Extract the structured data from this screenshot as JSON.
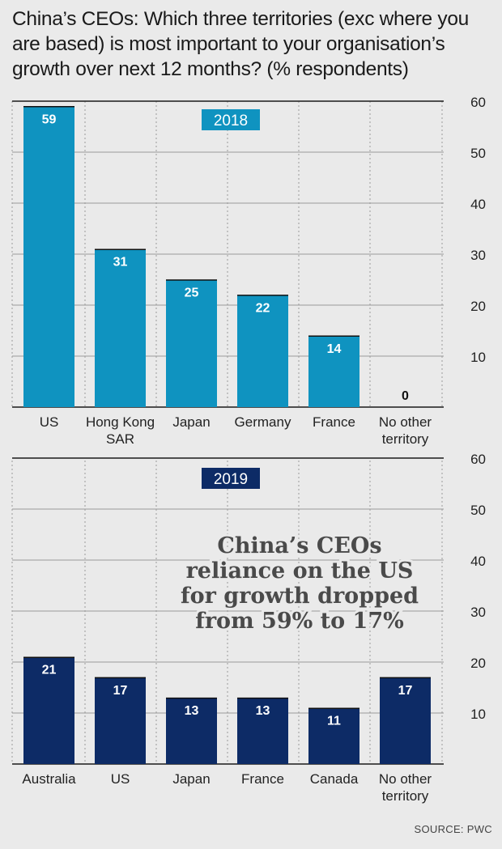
{
  "title": "China’s CEOs: Which three territories (exc where you are based) is most important to your organisation’s growth over next 12 months? (% respondents)",
  "source": "SOURCE: PWC",
  "colors": {
    "bar_2018": "#0f93c0",
    "bar_2019": "#0d2b66",
    "grid_dark": "#1a1a1a",
    "grid_light": "#9a9a9a",
    "background": "#eaeaea"
  },
  "chart_data": [
    {
      "type": "bar",
      "title": "2018",
      "categories": [
        [
          "US"
        ],
        [
          "Hong Kong",
          "SAR"
        ],
        [
          "Japan"
        ],
        [
          "Germany"
        ],
        [
          "France"
        ],
        [
          "No other",
          "territory"
        ]
      ],
      "values": [
        59,
        31,
        25,
        22,
        14,
        0
      ],
      "data_labels": [
        "59",
        "31",
        "25",
        "22",
        "14",
        "0"
      ],
      "yticks": [
        10,
        20,
        30,
        40,
        50,
        60
      ],
      "ylim": [
        0,
        60
      ],
      "ylabel": "",
      "xlabel": "",
      "y_axis_side": "right",
      "grid": true
    },
    {
      "type": "bar",
      "title": "2019",
      "categories": [
        [
          "Australia"
        ],
        [
          "US"
        ],
        [
          "Japan"
        ],
        [
          "France"
        ],
        [
          "Canada"
        ],
        [
          "No other",
          "territory"
        ]
      ],
      "values": [
        21,
        17,
        13,
        13,
        11,
        17
      ],
      "data_labels": [
        "21",
        "17",
        "13",
        "13",
        "11",
        "17"
      ],
      "yticks": [
        10,
        20,
        30,
        40,
        50,
        60
      ],
      "ylim": [
        0,
        60
      ],
      "ylabel": "",
      "xlabel": "",
      "y_axis_side": "right",
      "grid": true,
      "annotation": [
        "China’s CEOs",
        "reliance on the US",
        "for growth dropped",
        "from 59% to 17%"
      ]
    }
  ]
}
